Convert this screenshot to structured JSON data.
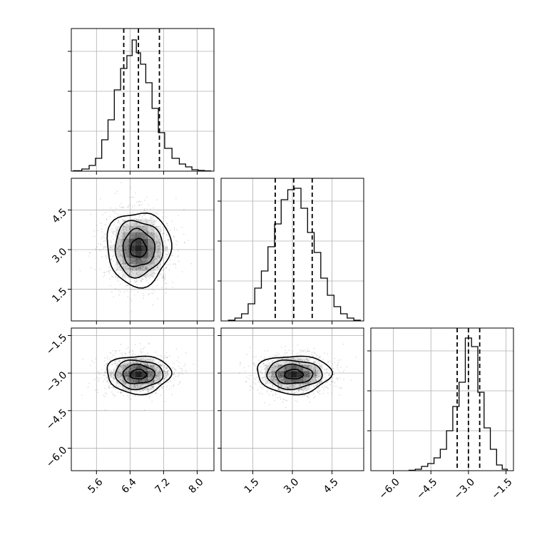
{
  "chart_data": [
    {
      "type": "histogram",
      "panel": "hist-x",
      "x": [
        5.15,
        5.35,
        5.5,
        5.65,
        5.8,
        5.95,
        6.1,
        6.25,
        6.4,
        6.5,
        6.6,
        6.7,
        6.85,
        7.0,
        7.15,
        7.3,
        7.5,
        7.65,
        7.8,
        7.95,
        8.1,
        8.25
      ],
      "counts": [
        0.003,
        0.015,
        0.04,
        0.09,
        0.22,
        0.36,
        0.57,
        0.72,
        0.81,
        0.92,
        0.83,
        0.75,
        0.62,
        0.44,
        0.27,
        0.16,
        0.09,
        0.05,
        0.03,
        0.01,
        0.005,
        0.002
      ],
      "xlim": [
        5.0,
        8.4
      ],
      "ylim": [
        0,
        1.0
      ],
      "quantiles": [
        6.25,
        6.6,
        7.1
      ],
      "xticks": [
        "5.6",
        "6.4",
        "7.2",
        "8.0"
      ],
      "grid": true
    },
    {
      "type": "scatter-density",
      "panel": "joint-x-y",
      "center": [
        6.6,
        3.05
      ],
      "spread": [
        0.38,
        0.7
      ],
      "xlim": [
        5.0,
        8.4
      ],
      "ylim": [
        0.3,
        5.7
      ],
      "yticks": [
        "1.5",
        "3.0",
        "4.5"
      ],
      "grid": true
    },
    {
      "type": "histogram",
      "panel": "hist-y",
      "x": [
        0.7,
        0.95,
        1.2,
        1.45,
        1.7,
        1.95,
        2.2,
        2.45,
        2.7,
        2.95,
        3.2,
        3.45,
        3.7,
        3.95,
        4.2,
        4.45,
        4.7,
        4.95,
        5.2,
        5.45
      ],
      "counts": [
        0.005,
        0.02,
        0.05,
        0.12,
        0.23,
        0.35,
        0.52,
        0.68,
        0.85,
        0.92,
        0.93,
        0.79,
        0.62,
        0.48,
        0.3,
        0.18,
        0.1,
        0.05,
        0.02,
        0.005
      ],
      "xlim": [
        0.3,
        5.7
      ],
      "ylim": [
        0,
        1.0
      ],
      "quantiles": [
        2.35,
        3.05,
        3.75
      ],
      "grid": true
    },
    {
      "type": "scatter-density",
      "panel": "joint-x-z",
      "center": [
        6.6,
        -3.05
      ],
      "spread": [
        0.38,
        0.38
      ],
      "xlim": [
        5.0,
        8.4
      ],
      "ylim": [
        -6.9,
        -1.2
      ],
      "xticks": [
        "5.6",
        "6.4",
        "7.2",
        "8.0"
      ],
      "yticks": [
        "−1.5",
        "−3.0",
        "−4.5",
        "−6.0"
      ],
      "grid": true
    },
    {
      "type": "scatter-density",
      "panel": "joint-y-z",
      "center": [
        3.05,
        -3.05
      ],
      "spread": [
        0.7,
        0.38
      ],
      "xlim": [
        0.3,
        5.7
      ],
      "ylim": [
        -6.9,
        -1.2
      ],
      "xticks": [
        "1.5",
        "3.0",
        "4.5"
      ],
      "grid": true
    },
    {
      "type": "histogram",
      "panel": "hist-z",
      "x": [
        -5.25,
        -5.0,
        -4.75,
        -4.5,
        -4.25,
        -4.0,
        -3.75,
        -3.5,
        -3.25,
        -3.0,
        -2.75,
        -2.5,
        -2.25,
        -2.0,
        -1.75,
        -1.55
      ],
      "counts": [
        0.003,
        0.01,
        0.03,
        0.05,
        0.09,
        0.15,
        0.28,
        0.45,
        0.62,
        0.93,
        0.87,
        0.55,
        0.3,
        0.15,
        0.04,
        0.01
      ],
      "xlim": [
        -6.9,
        -1.2
      ],
      "ylim": [
        0,
        1.0
      ],
      "quantiles": [
        -3.45,
        -3.0,
        -2.55
      ],
      "xticks": [
        "−6.0",
        "−4.5",
        "−3.0",
        "−1.5"
      ],
      "grid": true
    }
  ]
}
